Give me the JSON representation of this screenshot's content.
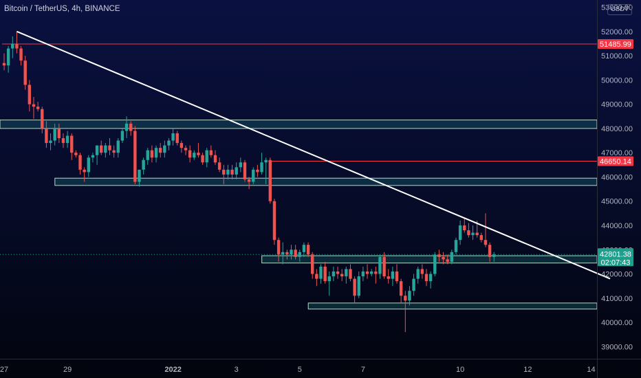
{
  "header": {
    "title": "Bitcoin / TetherUS, 4h, BINANCE"
  },
  "price_scale": {
    "unit": "USDT"
  },
  "colors": {
    "up": "#26a69a",
    "down": "#ef5350",
    "support_fill": "#26a69a",
    "resistance_line": "#f23645",
    "trend_line": "#ffffff",
    "axis_text": "#b2b5be"
  },
  "chart_data": {
    "type": "candlestick",
    "symbol": "Bitcoin / TetherUS",
    "interval": "4h",
    "exchange": "BINANCE",
    "ylim": [
      38500,
      53300
    ],
    "y_ticks": [
      39000,
      40000,
      41000,
      42000,
      43000,
      44000,
      45000,
      46000,
      47000,
      48000,
      49000,
      50000,
      51000,
      52000,
      53000
    ],
    "x_ticks": [
      {
        "label": "27",
        "bar": 0
      },
      {
        "label": "29",
        "bar": 15
      },
      {
        "label": "2022",
        "bar": 40
      },
      {
        "label": "3",
        "bar": 55
      },
      {
        "label": "5",
        "bar": 70
      },
      {
        "label": "7",
        "bar": 85
      },
      {
        "label": "10",
        "bar": 108
      },
      {
        "label": "12",
        "bar": 124
      },
      {
        "label": "14",
        "bar": 139
      }
    ],
    "candles": [
      [
        50700,
        51100,
        50400,
        50600
      ],
      [
        50600,
        51400,
        50300,
        51300
      ],
      [
        51300,
        51800,
        50900,
        51500
      ],
      [
        51500,
        52000,
        51100,
        51300
      ],
      [
        51300,
        51400,
        50600,
        50800
      ],
      [
        50800,
        51000,
        49600,
        49800
      ],
      [
        49800,
        50000,
        48700,
        49000
      ],
      [
        49000,
        49300,
        48400,
        48900
      ],
      [
        48900,
        49100,
        48700,
        48800
      ],
      [
        48800,
        48900,
        47800,
        48000
      ],
      [
        48000,
        48300,
        47200,
        47400
      ],
      [
        47400,
        47800,
        47100,
        47500
      ],
      [
        47500,
        48200,
        47300,
        48000
      ],
      [
        48000,
        48200,
        47400,
        47600
      ],
      [
        47600,
        47800,
        47200,
        47400
      ],
      [
        47400,
        47900,
        47200,
        47700
      ],
      [
        47700,
        47800,
        46700,
        47000
      ],
      [
        47000,
        47100,
        46800,
        46900
      ],
      [
        46900,
        47000,
        46100,
        46300
      ],
      [
        46300,
        46400,
        45800,
        46200
      ],
      [
        46200,
        46900,
        46000,
        46800
      ],
      [
        46800,
        47000,
        46600,
        46900
      ],
      [
        46900,
        47300,
        46500,
        47300
      ],
      [
        47300,
        47500,
        46900,
        47000
      ],
      [
        47000,
        47400,
        46800,
        47300
      ],
      [
        47300,
        47600,
        46900,
        47100
      ],
      [
        47100,
        47300,
        46800,
        47000
      ],
      [
        47000,
        47600,
        46800,
        47500
      ],
      [
        47500,
        48000,
        47400,
        47900
      ],
      [
        47900,
        48500,
        47600,
        48200
      ],
      [
        48200,
        48300,
        47700,
        47900
      ],
      [
        47900,
        48100,
        45700,
        45800
      ],
      [
        45800,
        46300,
        45600,
        46300
      ],
      [
        46300,
        46800,
        46100,
        46700
      ],
      [
        46700,
        47200,
        46500,
        47100
      ],
      [
        47100,
        47300,
        46600,
        46800
      ],
      [
        46800,
        47300,
        46600,
        47200
      ],
      [
        47200,
        47400,
        46800,
        47000
      ],
      [
        47000,
        47500,
        46800,
        47300
      ],
      [
        47300,
        47600,
        47100,
        47500
      ],
      [
        47500,
        48000,
        47300,
        47800
      ],
      [
        47800,
        47900,
        47300,
        47400
      ],
      [
        47400,
        47500,
        47000,
        47200
      ],
      [
        47200,
        47300,
        46900,
        47100
      ],
      [
        47100,
        47300,
        46600,
        46800
      ],
      [
        46800,
        47100,
        46700,
        47000
      ],
      [
        47000,
        47400,
        46800,
        46900
      ],
      [
        46900,
        47000,
        46500,
        46600
      ],
      [
        46600,
        47200,
        46400,
        47100
      ],
      [
        47100,
        47300,
        46800,
        46900
      ],
      [
        46900,
        47100,
        46500,
        46600
      ],
      [
        46600,
        46800,
        46200,
        46300
      ],
      [
        46300,
        46500,
        45700,
        46100
      ],
      [
        46100,
        46500,
        45900,
        46300
      ],
      [
        46300,
        46500,
        45900,
        46100
      ],
      [
        46100,
        46600,
        45900,
        46400
      ],
      [
        46400,
        46800,
        46200,
        46600
      ],
      [
        46600,
        46700,
        45800,
        45900
      ],
      [
        45900,
        46000,
        45500,
        45800
      ],
      [
        45800,
        46400,
        45700,
        46300
      ],
      [
        46300,
        46500,
        46000,
        46200
      ],
      [
        46200,
        47000,
        46100,
        46600
      ],
      [
        46600,
        46800,
        45700,
        46700
      ],
      [
        46700,
        46800,
        44900,
        45000
      ],
      [
        45000,
        45100,
        43200,
        43400
      ],
      [
        43400,
        43500,
        42500,
        42800
      ],
      [
        42800,
        43300,
        42400,
        42900
      ],
      [
        42900,
        43000,
        42600,
        42800
      ],
      [
        42800,
        43200,
        42600,
        43000
      ],
      [
        43000,
        43200,
        42600,
        42700
      ],
      [
        42700,
        43000,
        42500,
        42900
      ],
      [
        42900,
        43300,
        42700,
        43200
      ],
      [
        43200,
        43300,
        42700,
        42800
      ],
      [
        42800,
        42900,
        41800,
        42000
      ],
      [
        42000,
        42200,
        41500,
        41800
      ],
      [
        41800,
        42400,
        41600,
        42300
      ],
      [
        42300,
        42500,
        41600,
        41700
      ],
      [
        41700,
        42100,
        41100,
        41900
      ],
      [
        41900,
        42300,
        41700,
        42100
      ],
      [
        42100,
        42300,
        41800,
        42000
      ],
      [
        42000,
        42200,
        41700,
        41900
      ],
      [
        41900,
        42300,
        41600,
        42200
      ],
      [
        42200,
        42400,
        41700,
        41800
      ],
      [
        41800,
        41900,
        40800,
        41100
      ],
      [
        41100,
        42100,
        41000,
        41900
      ],
      [
        41900,
        42300,
        41700,
        42100
      ],
      [
        42100,
        42400,
        41800,
        42000
      ],
      [
        42000,
        42200,
        41900,
        42100
      ],
      [
        42100,
        42300,
        41600,
        42000
      ],
      [
        42000,
        42800,
        41800,
        42700
      ],
      [
        42700,
        42900,
        41800,
        41900
      ],
      [
        41900,
        42200,
        41600,
        41800
      ],
      [
        41800,
        42300,
        41500,
        42100
      ],
      [
        42100,
        42400,
        41600,
        41700
      ],
      [
        41700,
        41800,
        40800,
        41100
      ],
      [
        41100,
        41300,
        39600,
        40900
      ],
      [
        40900,
        41500,
        40700,
        41300
      ],
      [
        41300,
        42000,
        41100,
        41800
      ],
      [
        41800,
        42300,
        41600,
        42200
      ],
      [
        42200,
        42400,
        41800,
        42000
      ],
      [
        42000,
        42200,
        41500,
        41700
      ],
      [
        41700,
        42100,
        41400,
        42000
      ],
      [
        42000,
        42900,
        41900,
        42800
      ],
      [
        42800,
        43000,
        42500,
        42700
      ],
      [
        42700,
        42900,
        42400,
        42600
      ],
      [
        42600,
        42800,
        42400,
        42500
      ],
      [
        42500,
        43000,
        42400,
        42900
      ],
      [
        42900,
        43500,
        42800,
        43400
      ],
      [
        43400,
        44200,
        43200,
        44000
      ],
      [
        44000,
        44300,
        43700,
        43800
      ],
      [
        43800,
        44100,
        43500,
        43600
      ],
      [
        43600,
        44000,
        43400,
        43700
      ],
      [
        43700,
        44200,
        43500,
        43600
      ],
      [
        43600,
        43700,
        43300,
        43400
      ],
      [
        43400,
        44500,
        43100,
        43200
      ],
      [
        43200,
        43300,
        42500,
        42700
      ],
      [
        42700,
        42900,
        42500,
        42801
      ]
    ],
    "trend_line": {
      "from": {
        "bar": 3,
        "price": 52000
      },
      "to": {
        "bar": 143.5,
        "price": 41800
      }
    },
    "support_zones": [
      {
        "from_bar": 0,
        "to_bar": 144,
        "low": 48000,
        "high": 48350
      },
      {
        "from_bar": 13,
        "to_bar": 144,
        "low": 45650,
        "high": 45950
      },
      {
        "from_bar": 62,
        "to_bar": 144,
        "low": 42450,
        "high": 42750
      },
      {
        "from_bar": 73,
        "to_bar": 144,
        "low": 40550,
        "high": 40800
      }
    ],
    "resistance_levels": [
      {
        "price": 51485.99,
        "label": "51485.99",
        "from_bar": 0
      },
      {
        "price": 46650.14,
        "label": "46650.14",
        "from_bar": 63
      }
    ],
    "last_price": {
      "value": 42801.38,
      "label": "42801.38",
      "countdown": "02:07:43"
    }
  }
}
